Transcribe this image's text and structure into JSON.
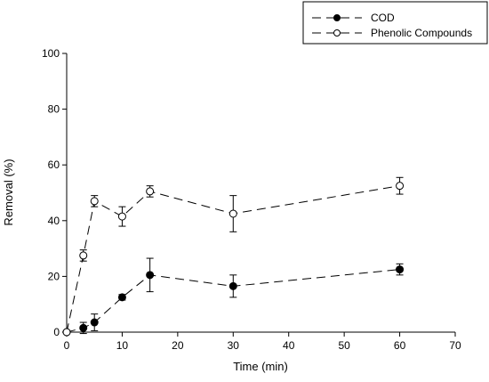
{
  "chart_data": {
    "type": "line",
    "xlabel": "Time (min)",
    "ylabel": "Removal (%)",
    "xlim": [
      0,
      70
    ],
    "ylim": [
      0,
      100
    ],
    "xticks": [
      "0",
      "10",
      "20",
      "30",
      "40",
      "50",
      "60",
      "70"
    ],
    "yticks": [
      "0",
      "20",
      "40",
      "60",
      "80",
      "100"
    ],
    "grid": false,
    "legend_position": "top-right",
    "x": [
      0,
      3,
      5,
      10,
      15,
      30,
      60
    ],
    "series": [
      {
        "name": "COD",
        "marker": "filled-circle",
        "line_style": "dashed",
        "values": [
          0,
          1.5,
          3.5,
          12.5,
          20.5,
          16.5,
          22.5
        ],
        "error": [
          0,
          2,
          3,
          1,
          6,
          4,
          2
        ]
      },
      {
        "name": "Phenolic Compounds",
        "marker": "open-circle",
        "line_style": "dashed",
        "values": [
          0,
          27.5,
          47,
          41.5,
          50.5,
          42.5,
          52.5
        ],
        "error": [
          0,
          2,
          2,
          3.5,
          2,
          6.5,
          3
        ]
      }
    ]
  }
}
